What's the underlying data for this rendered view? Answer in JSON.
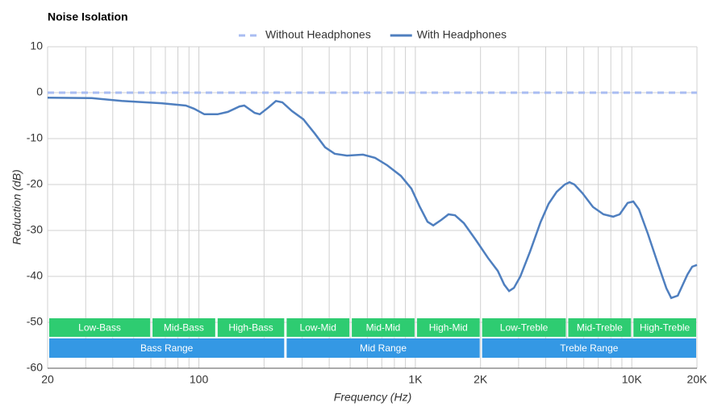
{
  "chart_data": {
    "type": "line",
    "title": "Noise Isolation",
    "x_label": "Frequency (Hz)",
    "y_label": "Reduction (dB)",
    "log_x": true,
    "grid": true,
    "legend": "top",
    "xlim": [
      20,
      20000
    ],
    "ylim": [
      -60,
      10
    ],
    "yticks": [
      -60,
      -50,
      -40,
      -30,
      -20,
      -10,
      0,
      10
    ],
    "xticks": [
      20,
      100,
      {
        "value": 1000,
        "label": "1K"
      },
      {
        "value": 2000,
        "label": "2K"
      },
      {
        "value": 10000,
        "label": "10K"
      },
      {
        "value": 20000,
        "label": "20K"
      }
    ],
    "xgrid": [
      30,
      40,
      50,
      60,
      70,
      80,
      90,
      200,
      300,
      400,
      500,
      600,
      700,
      800,
      900,
      3000,
      4000,
      5000,
      6000,
      7000,
      8000,
      9000
    ],
    "x": [
      20,
      32,
      44,
      67,
      87,
      95,
      106,
      122,
      136,
      154,
      162,
      181,
      191,
      210,
      227,
      243,
      269,
      304,
      343,
      383,
      424,
      483,
      573,
      652,
      741,
      857,
      959,
      1045,
      1138,
      1210,
      1318,
      1423,
      1525,
      1675,
      1905,
      2167,
      2403,
      2575,
      2710,
      2853,
      3057,
      3388,
      3787,
      4129,
      4498,
      4900,
      5155,
      5433,
      5918,
      6618,
      7400,
      8200,
      8790,
      9570,
      10160,
      10790,
      11860,
      13150,
      14450,
      15210,
      16300,
      18070,
      19010,
      20000
    ],
    "series": [
      {
        "name": "Without Headphones",
        "color": "#a9bdf2",
        "dashed": true,
        "values": [
          0,
          0,
          0,
          0,
          0,
          0,
          0,
          0,
          0,
          0,
          0,
          0,
          0,
          0,
          0,
          0,
          0,
          0,
          0,
          0,
          0,
          0,
          0,
          0,
          0,
          0,
          0,
          0,
          0,
          0,
          0,
          0,
          0,
          0,
          0,
          0,
          0,
          0,
          0,
          0,
          0,
          0,
          0,
          0,
          0,
          0,
          0,
          0,
          0,
          0,
          0,
          0,
          0,
          0,
          0,
          0,
          0,
          0,
          0,
          0,
          0,
          0,
          0,
          0
        ]
      },
      {
        "name": "With Headphones",
        "color": "#4f7fbf",
        "dashed": false,
        "values": [
          -1.1,
          -1.2,
          -1.8,
          -2.3,
          -2.8,
          -3.5,
          -4.7,
          -4.7,
          -4.2,
          -3.0,
          -2.8,
          -4.4,
          -4.7,
          -3.2,
          -1.8,
          -2.1,
          -4.0,
          -5.8,
          -8.9,
          -11.9,
          -13.3,
          -13.7,
          -13.5,
          -14.2,
          -15.8,
          -18.1,
          -20.9,
          -24.7,
          -28.1,
          -28.9,
          -27.7,
          -26.5,
          -26.7,
          -28.4,
          -32.1,
          -36.0,
          -38.8,
          -41.8,
          -43.2,
          -42.5,
          -40.0,
          -34.6,
          -28.2,
          -24.2,
          -21.6,
          -20.0,
          -19.5,
          -20.0,
          -21.9,
          -24.9,
          -26.5,
          -27.0,
          -26.5,
          -24.0,
          -23.7,
          -25.4,
          -30.7,
          -37.0,
          -42.6,
          -44.7,
          -44.2,
          -39.6,
          -37.9,
          -37.5
        ]
      }
    ],
    "sub_ranges": [
      {
        "label": "Low-Bass",
        "start": 20,
        "end": 60
      },
      {
        "label": "Mid-Bass",
        "start": 60,
        "end": 120
      },
      {
        "label": "High-Bass",
        "start": 120,
        "end": 250
      },
      {
        "label": "Low-Mid",
        "start": 250,
        "end": 500
      },
      {
        "label": "Mid-Mid",
        "start": 500,
        "end": 1000
      },
      {
        "label": "High-Mid",
        "start": 1000,
        "end": 2000
      },
      {
        "label": "Low-Treble",
        "start": 2000,
        "end": 5000
      },
      {
        "label": "Mid-Treble",
        "start": 5000,
        "end": 10000
      },
      {
        "label": "High-Treble",
        "start": 10000,
        "end": 20000
      }
    ],
    "sub_range_color": "#2ecc71",
    "ranges": [
      {
        "label": "Bass Range",
        "start": 20,
        "end": 250
      },
      {
        "label": "Mid Range",
        "start": 250,
        "end": 2000
      },
      {
        "label": "Treble Range",
        "start": 2000,
        "end": 20000
      }
    ],
    "range_color": "#3498e4"
  }
}
